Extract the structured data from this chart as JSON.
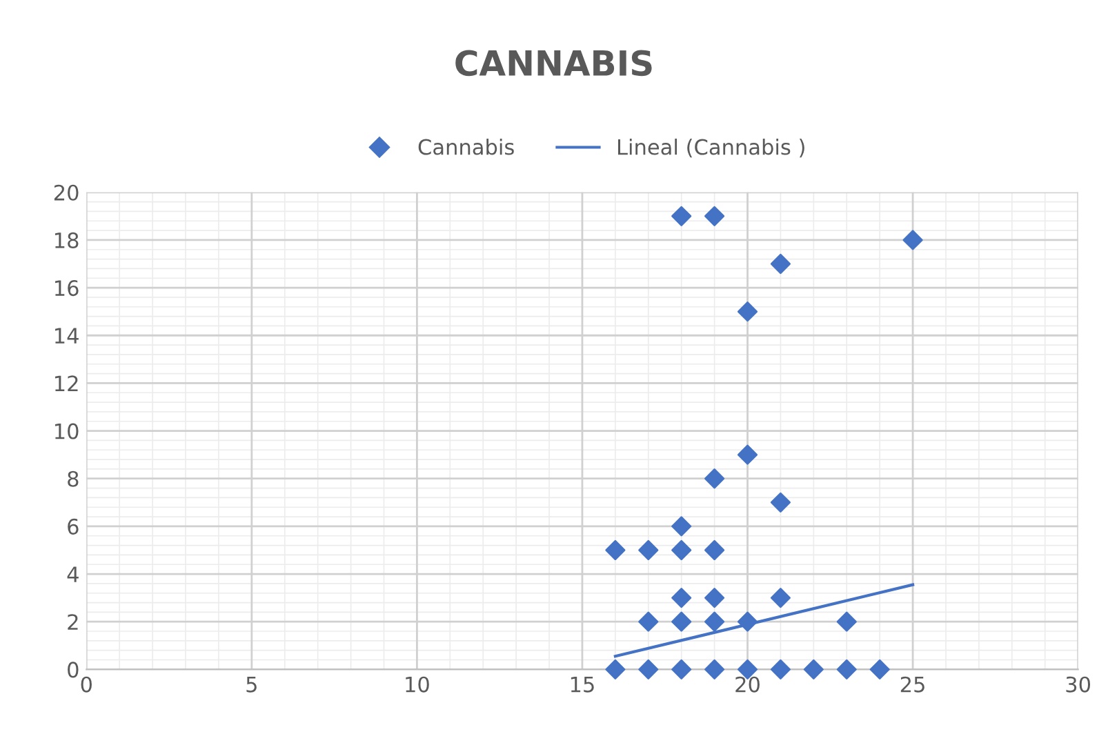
{
  "chart_data": {
    "type": "scatter",
    "title": "CANNABIS",
    "series": [
      {
        "name": "Cannabis",
        "color": "#4472c4",
        "marker": "diamond",
        "x": [
          16,
          17,
          18,
          19,
          20,
          21,
          22,
          23,
          24,
          17,
          18,
          19,
          20,
          23,
          18,
          19,
          21,
          16,
          17,
          18,
          19,
          18,
          21,
          19,
          20,
          20,
          21,
          18,
          19,
          25
        ],
        "values": [
          0,
          0,
          0,
          0,
          0,
          0,
          0,
          0,
          0,
          2,
          2,
          2,
          2,
          2,
          3,
          3,
          3,
          5,
          5,
          5,
          5,
          6,
          7,
          8,
          9,
          15,
          17,
          19,
          19,
          18
        ]
      },
      {
        "name": "Lineal (Cannabis )",
        "type": "line",
        "color": "#4472c4",
        "marker": "none",
        "x": [
          16,
          25
        ],
        "values": [
          0.55,
          3.55
        ]
      }
    ],
    "xlim": [
      0,
      30
    ],
    "xticks": [
      0,
      5,
      10,
      15,
      20,
      25,
      30
    ],
    "ylim": [
      0,
      20
    ],
    "yticks": [
      0,
      2,
      4,
      6,
      8,
      10,
      12,
      14,
      16,
      18,
      20
    ],
    "grid": true,
    "legend": "top"
  }
}
